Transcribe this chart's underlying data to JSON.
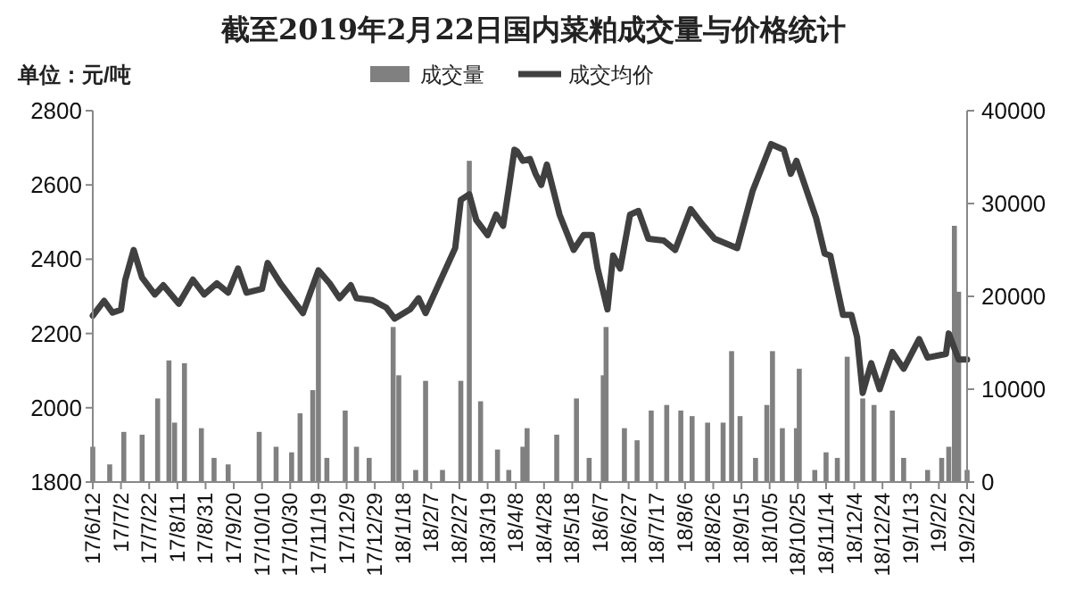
{
  "chart_data": {
    "type": "bar",
    "title": "截至2019年2月22日国内菜粕成交量与价格统计",
    "ylabel": "单位：元/吨",
    "legend": "top",
    "xlim": [
      "2017-06-12",
      "2019-02-22"
    ],
    "xticks": [
      {
        "value": "2017-06-12",
        "label": "17/6/12"
      },
      {
        "value": "2017-07-02",
        "label": "17/7/2"
      },
      {
        "value": "2017-07-22",
        "label": "17/7/22"
      },
      {
        "value": "2017-08-11",
        "label": "17/8/11"
      },
      {
        "value": "2017-08-31",
        "label": "17/8/31"
      },
      {
        "value": "2017-09-20",
        "label": "17/9/20"
      },
      {
        "value": "2017-10-10",
        "label": "17/10/10"
      },
      {
        "value": "2017-10-30",
        "label": "17/10/30"
      },
      {
        "value": "2017-11-19",
        "label": "17/11/19"
      },
      {
        "value": "2017-12-09",
        "label": "17/12/9"
      },
      {
        "value": "2017-12-29",
        "label": "17/12/29"
      },
      {
        "value": "2018-01-18",
        "label": "18/1/18"
      },
      {
        "value": "2018-02-07",
        "label": "18/2/7"
      },
      {
        "value": "2018-02-27",
        "label": "18/2/27"
      },
      {
        "value": "2018-03-19",
        "label": "18/3/19"
      },
      {
        "value": "2018-04-08",
        "label": "18/4/8"
      },
      {
        "value": "2018-04-28",
        "label": "18/4/28"
      },
      {
        "value": "2018-05-18",
        "label": "18/5/18"
      },
      {
        "value": "2018-06-07",
        "label": "18/6/7"
      },
      {
        "value": "2018-06-27",
        "label": "18/6/27"
      },
      {
        "value": "2018-07-17",
        "label": "18/7/17"
      },
      {
        "value": "2018-08-06",
        "label": "18/8/6"
      },
      {
        "value": "2018-08-26",
        "label": "18/8/26"
      },
      {
        "value": "2018-09-15",
        "label": "18/9/15"
      },
      {
        "value": "2018-10-05",
        "label": "18/10/5"
      },
      {
        "value": "2018-10-25",
        "label": "18/10/25"
      },
      {
        "value": "2018-11-14",
        "label": "18/11/14"
      },
      {
        "value": "2018-12-04",
        "label": "18/12/4"
      },
      {
        "value": "2018-12-24",
        "label": "18/12/24"
      },
      {
        "value": "2019-01-13",
        "label": "19/1/13"
      },
      {
        "value": "2019-02-02",
        "label": "19/2/2"
      },
      {
        "value": "2019-02-22",
        "label": "19/2/22"
      }
    ],
    "ylim": [
      1800,
      2800
    ],
    "yticks": [
      1800,
      2000,
      2200,
      2400,
      2600,
      2800
    ],
    "y2lim": [
      0,
      40000
    ],
    "y2ticks": [
      0,
      10000,
      20000,
      30000,
      40000
    ],
    "series": [
      {
        "name": "成交量",
        "axis": "y2",
        "color": "#808080",
        "x": [
          "2017-06-12",
          "2017-06-24",
          "2017-07-04",
          "2017-07-17",
          "2017-07-28",
          "2017-08-05",
          "2017-08-09",
          "2017-08-16",
          "2017-08-28",
          "2017-09-06",
          "2017-09-16",
          "2017-10-08",
          "2017-10-20",
          "2017-10-31",
          "2017-11-06",
          "2017-11-15",
          "2017-11-19",
          "2017-11-25",
          "2017-12-08",
          "2017-12-16",
          "2017-12-25",
          "2018-01-11",
          "2018-01-15",
          "2018-01-27",
          "2018-02-03",
          "2018-02-15",
          "2018-02-28",
          "2018-03-06",
          "2018-03-14",
          "2018-03-26",
          "2018-04-03",
          "2018-04-13",
          "2018-04-16",
          "2018-05-07",
          "2018-05-21",
          "2018-05-30",
          "2018-06-09",
          "2018-06-11",
          "2018-06-24",
          "2018-07-03",
          "2018-07-13",
          "2018-07-24",
          "2018-08-03",
          "2018-08-11",
          "2018-08-22",
          "2018-09-02",
          "2018-09-08",
          "2018-09-14",
          "2018-09-25",
          "2018-10-03",
          "2018-10-07",
          "2018-10-14",
          "2018-10-24",
          "2018-10-26",
          "2018-11-06",
          "2018-11-14",
          "2018-11-22",
          "2018-11-29",
          "2018-12-10",
          "2018-12-18",
          "2018-12-31",
          "2019-01-08",
          "2019-01-25",
          "2019-02-04",
          "2019-02-09",
          "2019-02-13",
          "2019-02-16",
          "2019-02-22"
        ],
        "values": [
          3800,
          1900,
          5400,
          5100,
          9000,
          13100,
          6400,
          12800,
          5800,
          2600,
          1900,
          5400,
          3800,
          3200,
          7400,
          9900,
          22400,
          2600,
          7700,
          3800,
          2600,
          16700,
          11500,
          1300,
          10900,
          1300,
          10900,
          34600,
          8700,
          3500,
          1300,
          3800,
          5800,
          5100,
          9000,
          2600,
          11500,
          16700,
          5800,
          4500,
          7700,
          8300,
          7700,
          7100,
          6400,
          6400,
          14100,
          7100,
          2600,
          8300,
          14100,
          5800,
          5800,
          12200,
          1300,
          3200,
          2600,
          13500,
          9000,
          8300,
          7700,
          2600,
          1300,
          2600,
          3800,
          27600,
          20500,
          1300
        ]
      },
      {
        "name": "成交均价",
        "type": "line",
        "color": "#404040",
        "x": [
          "2017-06-12",
          "2017-06-20",
          "2017-06-26",
          "2017-07-02",
          "2017-07-05",
          "2017-07-11",
          "2017-07-17",
          "2017-07-26",
          "2017-08-01",
          "2017-08-12",
          "2017-08-22",
          "2017-08-30",
          "2017-09-08",
          "2017-09-16",
          "2017-09-23",
          "2017-09-29",
          "2017-10-10",
          "2017-10-14",
          "2017-10-23",
          "2017-10-31",
          "2017-11-08",
          "2017-11-19",
          "2017-11-27",
          "2017-12-04",
          "2017-12-12",
          "2017-12-16",
          "2017-12-27",
          "2018-01-06",
          "2018-01-12",
          "2018-01-23",
          "2018-01-29",
          "2018-02-03",
          "2018-02-09",
          "2018-02-24",
          "2018-02-28",
          "2018-03-06",
          "2018-03-11",
          "2018-03-19",
          "2018-03-25",
          "2018-03-30",
          "2018-04-03",
          "2018-04-07",
          "2018-04-09",
          "2018-04-13",
          "2018-04-18",
          "2018-04-22",
          "2018-04-26",
          "2018-04-30",
          "2018-05-09",
          "2018-05-19",
          "2018-05-26",
          "2018-06-01",
          "2018-06-05",
          "2018-06-12",
          "2018-06-16",
          "2018-06-21",
          "2018-06-28",
          "2018-07-04",
          "2018-07-11",
          "2018-07-22",
          "2018-07-30",
          "2018-08-10",
          "2018-08-18",
          "2018-08-27",
          "2018-09-12",
          "2018-09-23",
          "2018-10-06",
          "2018-10-15",
          "2018-10-20",
          "2018-10-24",
          "2018-11-07",
          "2018-11-13",
          "2018-11-17",
          "2018-11-26",
          "2018-12-02",
          "2018-12-06",
          "2018-12-10",
          "2018-12-16",
          "2018-12-22",
          "2018-12-31",
          "2019-01-08",
          "2019-01-19",
          "2019-01-25",
          "2019-02-07",
          "2019-02-09",
          "2019-02-16",
          "2019-02-22"
        ],
        "values": [
          2248,
          2288,
          2256,
          2264,
          2344,
          2425,
          2350,
          2305,
          2330,
          2280,
          2345,
          2305,
          2335,
          2310,
          2375,
          2310,
          2320,
          2390,
          2335,
          2295,
          2255,
          2370,
          2335,
          2295,
          2330,
          2295,
          2290,
          2270,
          2240,
          2265,
          2295,
          2255,
          2305,
          2430,
          2560,
          2575,
          2505,
          2465,
          2520,
          2490,
          2590,
          2695,
          2690,
          2665,
          2670,
          2630,
          2600,
          2655,
          2520,
          2425,
          2465,
          2465,
          2375,
          2265,
          2410,
          2375,
          2520,
          2530,
          2455,
          2450,
          2425,
          2535,
          2495,
          2455,
          2430,
          2585,
          2710,
          2695,
          2630,
          2665,
          2510,
          2415,
          2410,
          2250,
          2250,
          2190,
          2040,
          2120,
          2050,
          2150,
          2105,
          2185,
          2135,
          2145,
          2200,
          2130,
          2130
        ]
      }
    ]
  }
}
